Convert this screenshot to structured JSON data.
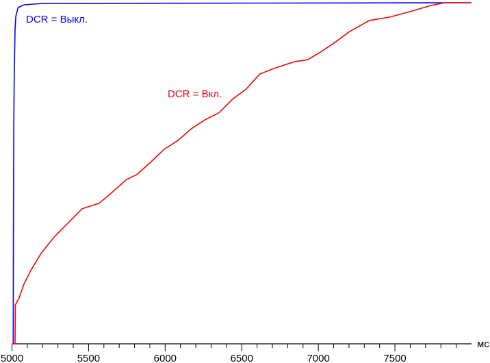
{
  "chart_data": {
    "type": "line",
    "title": "",
    "xlabel": "мс",
    "ylabel": "",
    "xlim": [
      5000,
      8000
    ],
    "ylim": [
      0,
      100
    ],
    "x_ticks": [
      5000,
      5500,
      6000,
      6500,
      7000,
      7500
    ],
    "x_tick_labels": [
      "5000",
      "5500",
      "6000",
      "6500",
      "7000",
      "7500"
    ],
    "x_minor_tick_step": 100,
    "grid": false,
    "legend": "none",
    "annotations": [
      {
        "text": "DCR = Выкл.",
        "series": 0
      },
      {
        "text": "DCR = Вкл.",
        "series": 1
      }
    ],
    "series": [
      {
        "name": "DCR = Выкл.",
        "color": "#0000ff",
        "x": [
          5000,
          5008,
          5010,
          5012,
          5015,
          5020,
          5025,
          5040,
          5080,
          5200,
          8000
        ],
        "y": [
          0,
          0,
          40,
          65,
          80,
          92,
          96,
          98.6,
          99.4,
          99.8,
          100
        ]
      },
      {
        "name": "DCR = Вкл.",
        "color": "#ff0000",
        "x": [
          5000,
          5020,
          5022,
          5047,
          5078,
          5123,
          5190,
          5279,
          5368,
          5458,
          5569,
          5658,
          5748,
          5815,
          5904,
          5993,
          6083,
          6172,
          6261,
          6350,
          6440,
          6529,
          6618,
          6708,
          6842,
          6931,
          7020,
          7109,
          7199,
          7333,
          7467,
          7600,
          7734,
          7823,
          8000
        ],
        "y": [
          0,
          0,
          11.4,
          13.5,
          17.5,
          21.5,
          26.5,
          31.5,
          35.5,
          39.6,
          41.2,
          44.6,
          48.2,
          49.6,
          53.2,
          57.0,
          59.6,
          63.1,
          65.7,
          67.7,
          71.7,
          74.7,
          79.1,
          80.7,
          82.7,
          83.3,
          85.7,
          88.4,
          91.4,
          94.8,
          95.8,
          97.4,
          99.2,
          100,
          100
        ]
      }
    ]
  }
}
